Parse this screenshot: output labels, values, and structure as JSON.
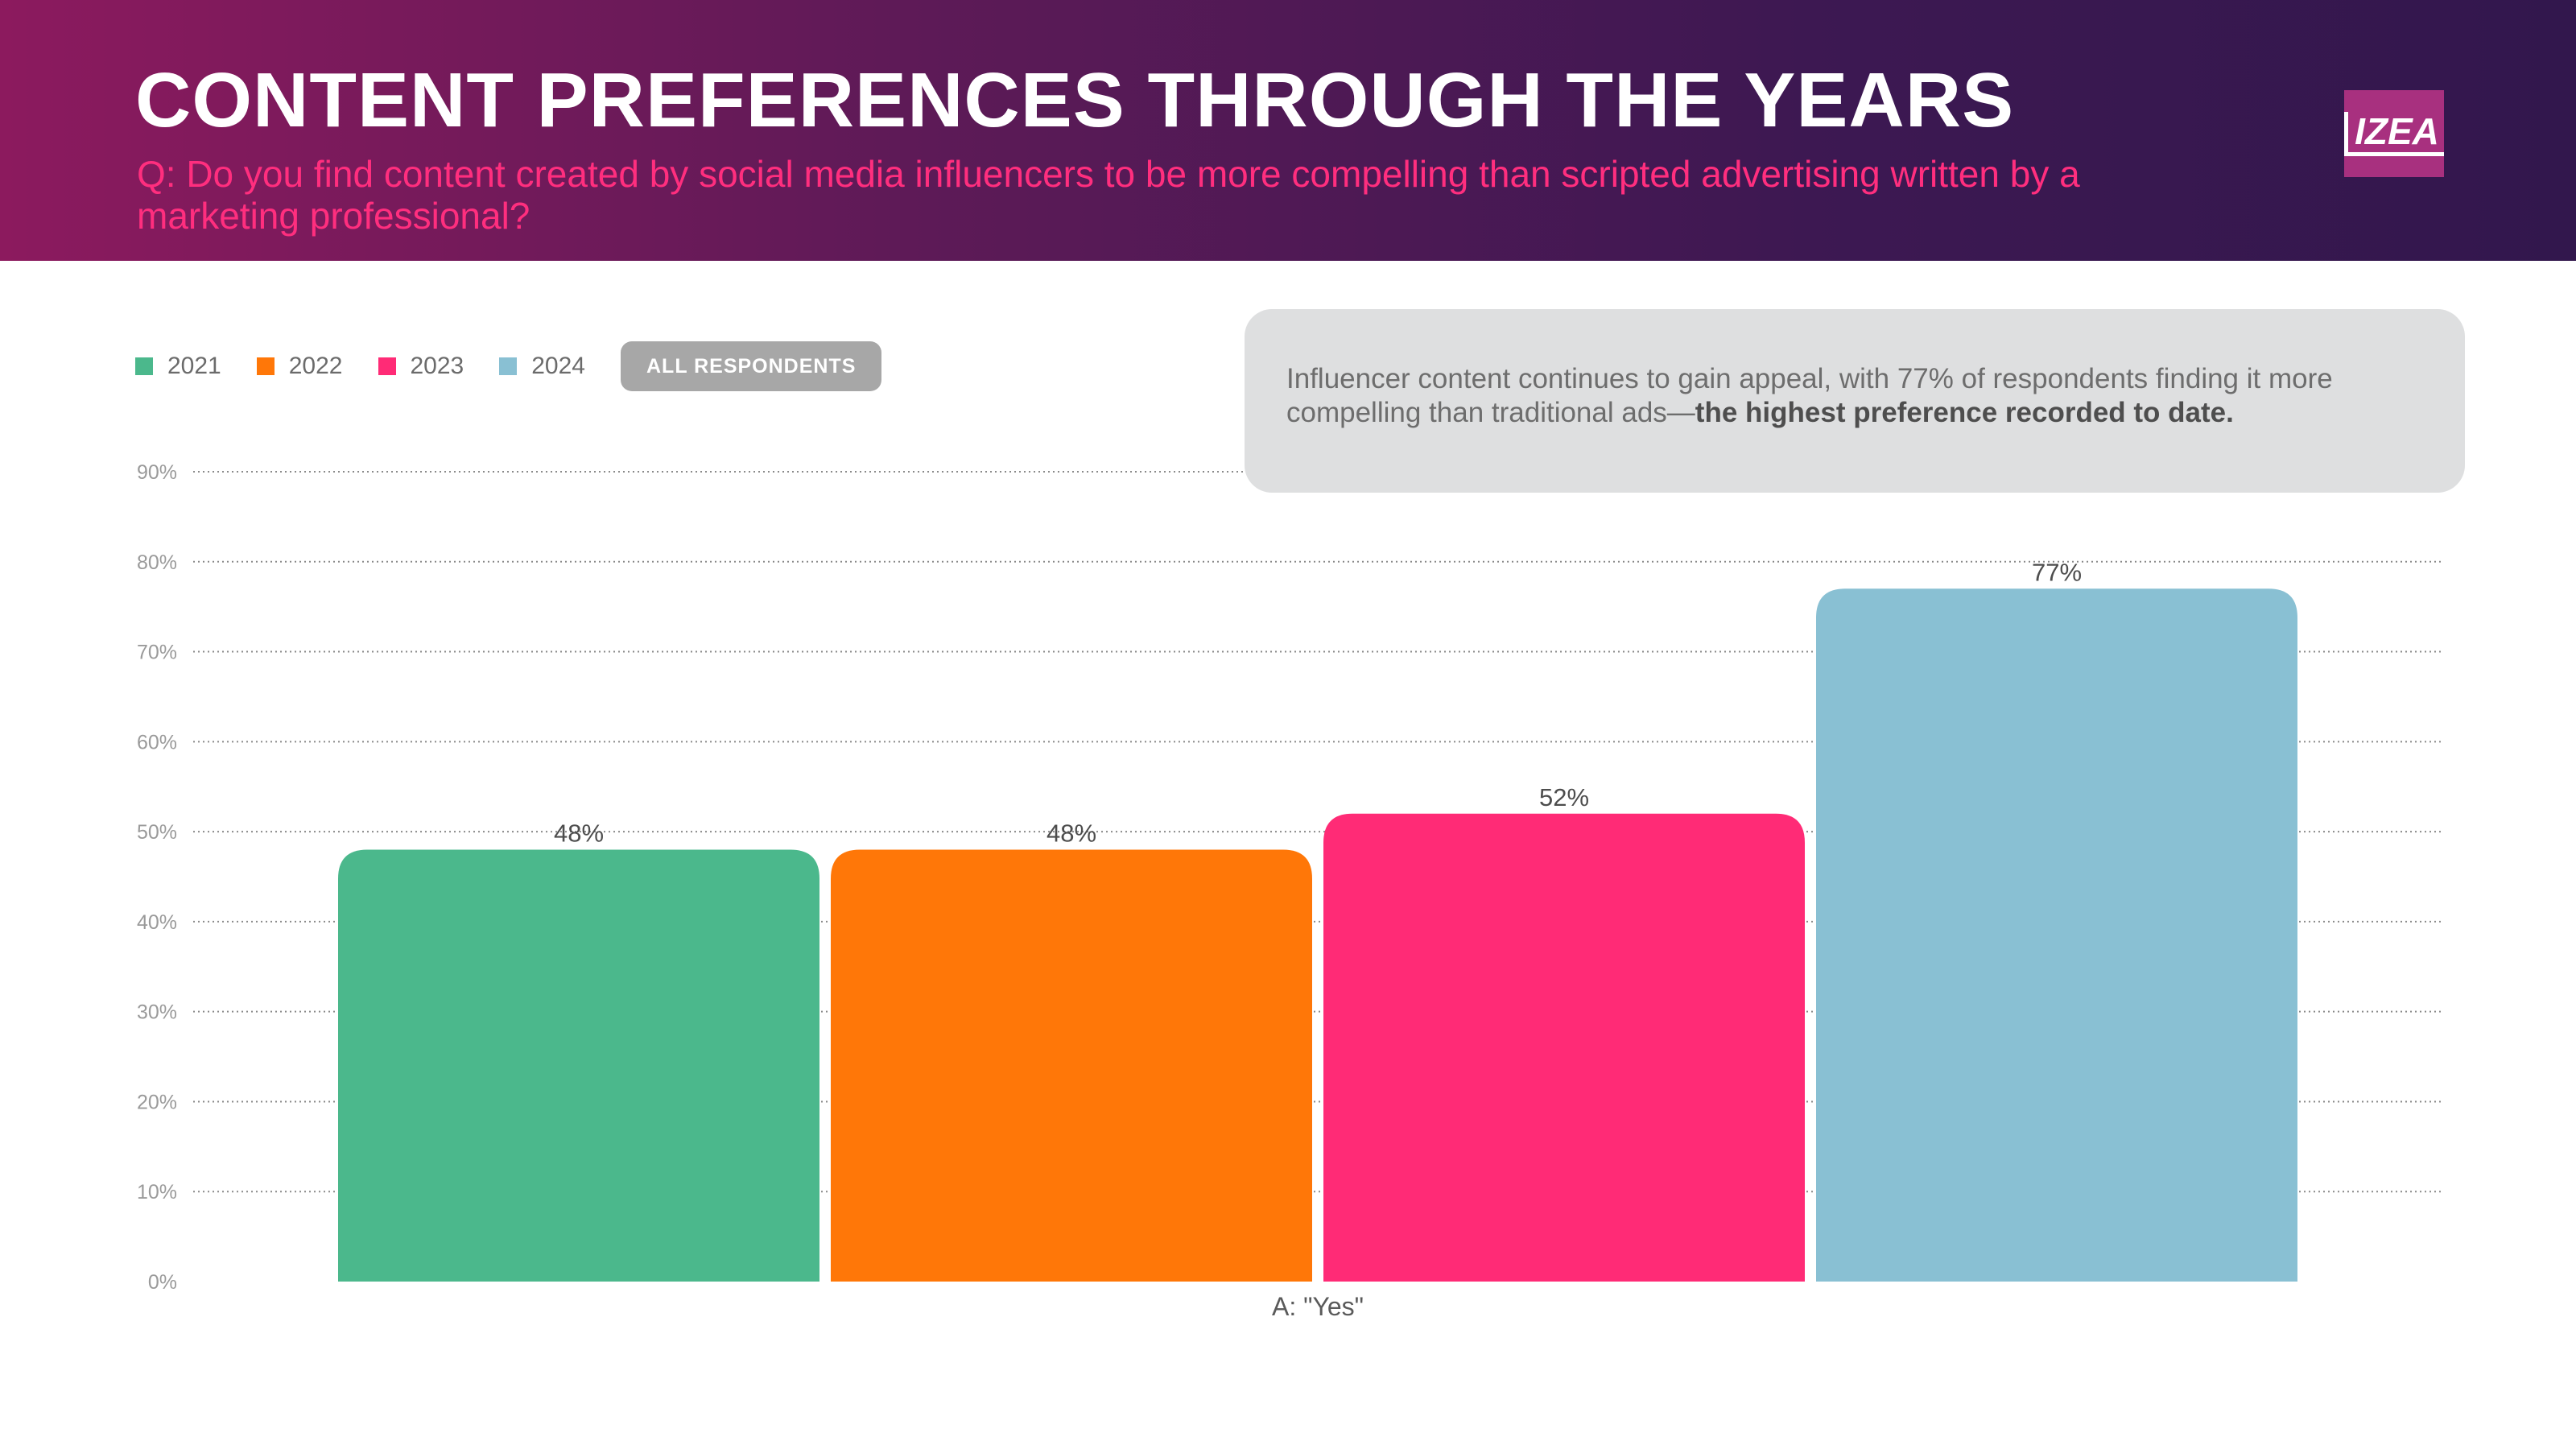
{
  "header": {
    "title": "CONTENT PREFERENCES THROUGH THE YEARS",
    "subtitle": "Q: Do you find content created by social media influencers to be more compelling than scripted advertising written by a marketing professional?",
    "logo_text": "IZEA"
  },
  "legend": {
    "items": [
      {
        "label": "2021",
        "color": "#4bb88c"
      },
      {
        "label": "2022",
        "color": "#ff7708"
      },
      {
        "label": "2023",
        "color": "#ff2b76"
      },
      {
        "label": "2024",
        "color": "#89c0d3"
      }
    ],
    "filter_label": "ALL RESPONDENTS"
  },
  "callout": {
    "text": "Influencer content continues to gain appeal, with 77% of respondents finding it more compelling than traditional ads—",
    "bold_text": "the highest preference recorded to date."
  },
  "chart_data": {
    "type": "bar",
    "categories": [
      "A: \"Yes\""
    ],
    "series": [
      {
        "name": "2021",
        "values": [
          48
        ],
        "color": "#4bb88c",
        "label": "48%"
      },
      {
        "name": "2022",
        "values": [
          48
        ],
        "color": "#ff7708",
        "label": "48%"
      },
      {
        "name": "2023",
        "values": [
          52
        ],
        "color": "#ff2b76",
        "label": "52%"
      },
      {
        "name": "2024",
        "values": [
          77
        ],
        "color": "#89c0d3",
        "label": "77%"
      }
    ],
    "ylim": [
      0,
      90
    ],
    "yticks": [
      0,
      10,
      20,
      30,
      40,
      50,
      60,
      70,
      80,
      90
    ],
    "ytick_labels": [
      "0%",
      "10%",
      "20%",
      "30%",
      "40%",
      "50%",
      "60%",
      "70%",
      "80%",
      "90%"
    ],
    "grid": true,
    "grid_style": "dotted",
    "legend": "top-left"
  }
}
